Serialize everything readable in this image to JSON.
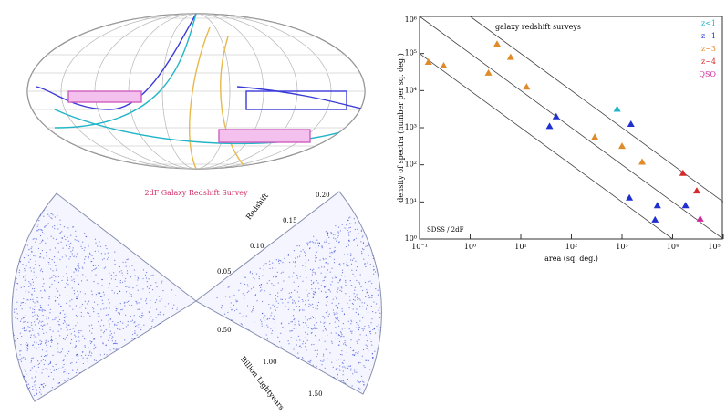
{
  "figure": {
    "caption": "2dF Galaxy Redshift Survey",
    "cone_axis_left": "Redshift",
    "cone_axis_right": "Billion Lightyears",
    "redshift_ticks": [
      "0.05",
      "0.10",
      "0.15",
      "0.20"
    ],
    "distance_ticks": [
      "0.50",
      "1.00",
      "1.50"
    ]
  },
  "chart_data": {
    "type": "scatter",
    "title": "galaxy redshift surveys",
    "x_label": "area (sq. deg.)",
    "y_label": "density of spectra (number per sq. deg.)",
    "annotation": "SDSS / 2dF",
    "log_x": true,
    "log_y": true,
    "xlim": [
      0.1,
      100000
    ],
    "ylim": [
      1,
      1000000
    ],
    "xticks": [
      {
        "value": 0.1,
        "label": "10⁻¹"
      },
      {
        "value": 1,
        "label": "10⁰"
      },
      {
        "value": 10,
        "label": "10¹"
      },
      {
        "value": 100,
        "label": "10²"
      },
      {
        "value": 1000,
        "label": "10³"
      },
      {
        "value": 10000,
        "label": "10⁴"
      },
      {
        "value": 100000,
        "label": "10⁵"
      }
    ],
    "yticks": [
      {
        "value": 1,
        "label": "10⁰"
      },
      {
        "value": 10,
        "label": "10¹"
      },
      {
        "value": 100,
        "label": "10²"
      },
      {
        "value": 1000,
        "label": "10³"
      },
      {
        "value": 10000,
        "label": "10⁴"
      },
      {
        "value": 100000,
        "label": "10⁵"
      },
      {
        "value": 1000000,
        "label": "10⁶"
      }
    ],
    "reference_lines": [
      1000000,
      100000,
      10000
    ],
    "legend": "upper right",
    "series": [
      {
        "name": "z<1",
        "color": "#22b5c8",
        "x": [
          800
        ],
        "values": [
          3200
        ]
      },
      {
        "name": "z~1",
        "color": "#1f2fd0",
        "x": [
          50,
          37,
          1500,
          1400,
          5000,
          18000,
          4500
        ],
        "values": [
          2000,
          1100,
          1250,
          13,
          8,
          8,
          3.3
        ]
      },
      {
        "name": "z~3",
        "color": "#e08a2a",
        "x": [
          0.15,
          0.3,
          3.4,
          6.3,
          2.3,
          13,
          290,
          1000,
          2500
        ],
        "values": [
          59000,
          47000,
          180000,
          80000,
          30000,
          12600,
          560,
          320,
          120
        ]
      },
      {
        "name": "z~4",
        "color": "#d42a2a",
        "x": [
          16000,
          30000
        ],
        "values": [
          60,
          20
        ]
      },
      {
        "name": "QSO",
        "color": "#d02a9a",
        "x": [
          35000
        ],
        "values": [
          3.5
        ]
      }
    ]
  }
}
